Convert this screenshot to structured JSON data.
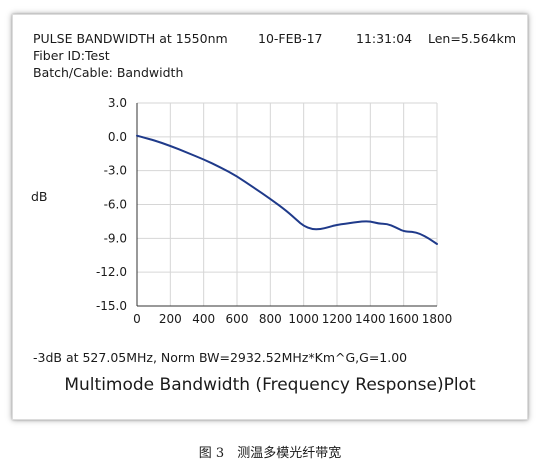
{
  "header": {
    "title": "PULSE BANDWIDTH at 1550nm",
    "date": "10-FEB-17",
    "time": "11:31:04",
    "length": "Len=5.564km",
    "fiber_id": "Fiber ID:Test",
    "batch": "Batch/Cable: Bandwidth"
  },
  "note": "-3dB at 527.05MHz, Norm BW=2932.52MHz*Km^G,G=1.00",
  "plot_title": "Multimode Bandwidth (Frequency Response)Plot",
  "caption": "图 3　测温多模光纤带宽",
  "colors": {
    "line": "#1f3a8a",
    "grid": "#d6d6d6",
    "axis": "#333333"
  },
  "chart_data": {
    "type": "line",
    "title": "Multimode Bandwidth (Frequency Response)Plot",
    "xlabel": "",
    "ylabel": "dB",
    "xlim": [
      0,
      1800
    ],
    "ylim": [
      -15,
      3
    ],
    "grid": true,
    "x_ticks": [
      "0",
      "200",
      "400",
      "600",
      "800",
      "1000",
      "1200",
      "1400",
      "1600",
      "1800"
    ],
    "y_ticks": [
      "3.0",
      "0.0",
      "-3.0",
      "-6.0",
      "-9.0",
      "-12.0",
      "-15.0"
    ],
    "series": [
      {
        "x": [
          0,
          50,
          100,
          200,
          300,
          400,
          500,
          600,
          700,
          800,
          900,
          960,
          1000,
          1050,
          1100,
          1150,
          1200,
          1250,
          1300,
          1350,
          1400,
          1450,
          1500,
          1550,
          1600,
          1650,
          1700,
          1750,
          1800
        ],
        "y": [
          0.1,
          -0.1,
          -0.3,
          -0.8,
          -1.4,
          -2.0,
          -2.7,
          -3.5,
          -4.5,
          -5.5,
          -6.6,
          -7.4,
          -7.9,
          -8.2,
          -8.2,
          -8.0,
          -7.8,
          -7.7,
          -7.6,
          -7.5,
          -7.5,
          -7.7,
          -7.7,
          -8.0,
          -8.4,
          -8.4,
          -8.6,
          -9.0,
          -9.5
        ]
      }
    ]
  }
}
